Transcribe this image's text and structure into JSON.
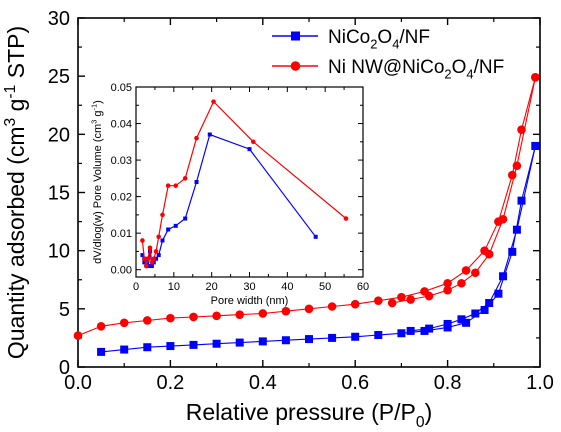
{
  "chart_data": [
    {
      "type": "scatter",
      "xlabel": "Relative pressure (P/P0)",
      "ylabel": "Quantity adsorbed (cm3 g-1 STP)",
      "xlim": [
        0.0,
        1.0
      ],
      "ylim": [
        0,
        30
      ],
      "xticks": [
        0.0,
        0.2,
        0.4,
        0.6,
        0.8,
        1.0
      ],
      "xtick_labels": [
        "0.0",
        "0.2",
        "0.4",
        "0.6",
        "0.8",
        "1.0"
      ],
      "yticks": [
        0,
        5,
        10,
        15,
        20,
        25,
        30
      ],
      "ytick_labels": [
        "0",
        "5",
        "10",
        "15",
        "20",
        "25",
        "30"
      ],
      "legend_position": "top-right",
      "series": [
        {
          "name": "NiCo2O4/NF",
          "color": "#0000ff",
          "marker": "square",
          "adsorption": {
            "x": [
              0.05,
              0.1,
              0.15,
              0.2,
              0.25,
              0.3,
              0.35,
              0.4,
              0.45,
              0.5,
              0.55,
              0.6,
              0.65,
              0.7,
              0.75,
              0.8,
              0.84,
              0.88,
              0.91,
              0.94,
              0.96,
              0.99
            ],
            "y": [
              1.3,
              1.5,
              1.7,
              1.8,
              1.9,
              2.0,
              2.1,
              2.2,
              2.3,
              2.4,
              2.5,
              2.6,
              2.75,
              2.9,
              3.1,
              3.4,
              3.8,
              4.9,
              6.3,
              9.9,
              14.3,
              19.0
            ]
          },
          "desorption": {
            "x": [
              0.99,
              0.95,
              0.92,
              0.89,
              0.86,
              0.83,
              0.8,
              0.76,
              0.72
            ],
            "y": [
              19.0,
              11.8,
              7.8,
              5.5,
              4.6,
              4.1,
              3.7,
              3.3,
              3.1
            ]
          }
        },
        {
          "name": "Ni NW@NiCo2O4/NF",
          "color": "#ff0000",
          "marker": "circle",
          "adsorption": {
            "x": [
              0.0,
              0.05,
              0.1,
              0.15,
              0.2,
              0.25,
              0.3,
              0.35,
              0.4,
              0.45,
              0.5,
              0.55,
              0.6,
              0.65,
              0.7,
              0.75,
              0.8,
              0.84,
              0.88,
              0.91,
              0.94,
              0.96,
              0.99
            ],
            "y": [
              2.7,
              3.5,
              3.8,
              4.0,
              4.2,
              4.3,
              4.4,
              4.5,
              4.6,
              4.8,
              5.0,
              5.2,
              5.4,
              5.7,
              6.0,
              6.5,
              7.2,
              8.3,
              10.0,
              12.5,
              16.5,
              20.4,
              24.9
            ]
          },
          "desorption": {
            "x": [
              0.99,
              0.95,
              0.92,
              0.89,
              0.86,
              0.83,
              0.8,
              0.76,
              0.72,
              0.68
            ],
            "y": [
              24.9,
              17.3,
              12.7,
              9.7,
              8.1,
              7.2,
              6.6,
              6.1,
              5.8,
              5.5
            ]
          }
        }
      ]
    },
    {
      "type": "line",
      "xlabel": "Pore width (nm)",
      "ylabel": "dV/dlog(w) Pore Volume (cm3 g-1)",
      "xlim": [
        0,
        60
      ],
      "ylim": [
        -0.002,
        0.05
      ],
      "xticks": [
        0,
        10,
        20,
        30,
        40,
        50,
        60
      ],
      "xtick_labels": [
        "0",
        "10",
        "20",
        "30",
        "40",
        "50",
        "60"
      ],
      "yticks": [
        0.0,
        0.01,
        0.02,
        0.03,
        0.04,
        0.05
      ],
      "ytick_labels": [
        "0.00",
        "0.01",
        "0.02",
        "0.03",
        "0.04",
        "0.05"
      ],
      "series": [
        {
          "color": "#0000ff",
          "x": [
            1.7,
            2.2,
            2.7,
            3.2,
            3.7,
            4.2,
            4.7,
            5.3,
            6.0,
            7.0,
            8.5,
            10.5,
            13.0,
            16.0,
            19.5,
            30.0,
            47.5
          ],
          "y": [
            0.004,
            0.002,
            0.003,
            0.001,
            0.005,
            0.001,
            0.002,
            0.003,
            0.004,
            0.008,
            0.011,
            0.012,
            0.014,
            0.024,
            0.037,
            0.033,
            0.009
          ]
        },
        {
          "color": "#ff0000",
          "x": [
            1.7,
            2.2,
            2.7,
            3.2,
            3.7,
            4.2,
            4.7,
            5.3,
            6.0,
            7.0,
            8.5,
            10.5,
            13.0,
            16.0,
            20.5,
            31.0,
            55.5
          ],
          "y": [
            0.008,
            0.003,
            0.001,
            0.003,
            0.006,
            0.002,
            0.003,
            0.005,
            0.009,
            0.015,
            0.023,
            0.023,
            0.025,
            0.036,
            0.046,
            0.035,
            0.014
          ]
        }
      ]
    }
  ]
}
